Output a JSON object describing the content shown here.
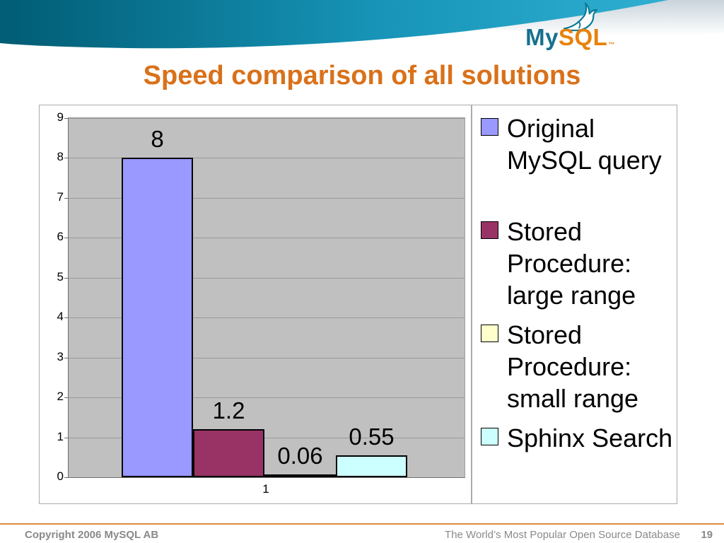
{
  "header": {
    "logo_my": "My",
    "logo_sql": "SQL",
    "logo_tm": "™"
  },
  "title": "Speed comparison of all solutions",
  "colors": {
    "title_orange": "#D9711A",
    "brand_teal": "#00758F",
    "brand_orange": "#E8820C",
    "footer_rule": "#DE8A46",
    "plot_background": "#C0C0C0"
  },
  "chart_data": {
    "type": "bar",
    "title": "Speed comparison of all solutions",
    "categories": [
      "1"
    ],
    "series": [
      {
        "name": "Original MySQL query",
        "value": 8,
        "label": "8",
        "color": "#9999FF"
      },
      {
        "name": "Stored Procedure: large range",
        "value": 1.2,
        "label": "1.2",
        "color": "#993366"
      },
      {
        "name": "Stored Procedure: small range",
        "value": 0.06,
        "label": "0.06",
        "color": "#FFFFCC"
      },
      {
        "name": "Sphinx Search",
        "value": 0.55,
        "label": "0.55",
        "color": "#CCFFFF"
      }
    ],
    "ylim": [
      0,
      9
    ],
    "yticks": [
      0,
      1,
      2,
      3,
      4,
      5,
      6,
      7,
      8,
      9
    ],
    "xlabel": "",
    "ylabel": "",
    "grid": true,
    "legend_position": "right",
    "plot_background": "#C0C0C0"
  },
  "footer": {
    "copyright": "Copyright 2006 MySQL AB",
    "tagline": "The World’s Most Popular Open Source Database",
    "page": "19"
  }
}
